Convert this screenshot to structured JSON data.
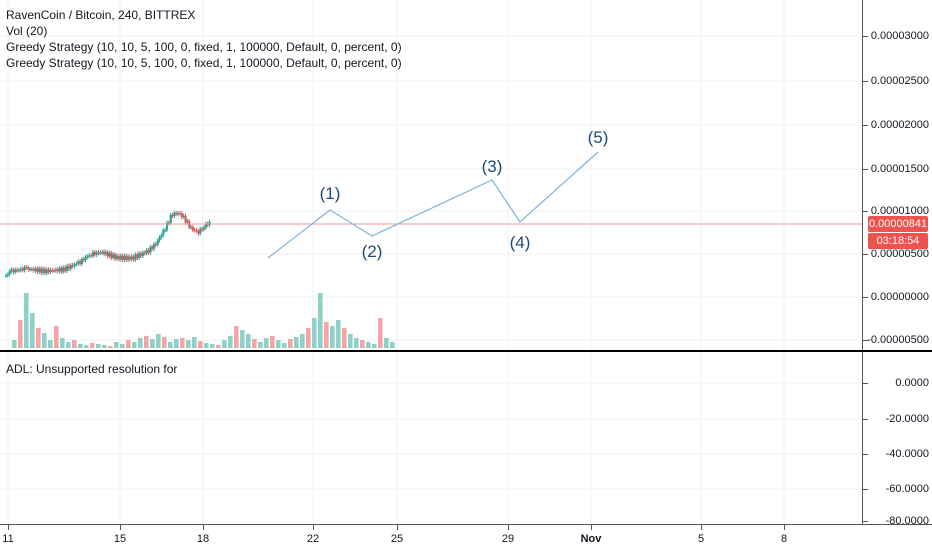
{
  "legend": {
    "symbol": "RavenCoin / Bitcoin, 240, BITTREX",
    "volume": "Vol (20)",
    "strategy_1": "Greedy Strategy (10, 10, 5, 100, 0, fixed, 1, 100000, Default, 0, percent, 0)",
    "strategy_2": "Greedy Strategy (10, 10, 5, 100, 0, fixed, 1, 100000, Default, 0, percent, 0)"
  },
  "sub_pane": {
    "label": "ADL: Unsupported resolution for"
  },
  "price_axis": [
    "0.00003000",
    "0.00002500",
    "0.00002000",
    "0.00001500",
    "0.00001000",
    "0.00000500",
    "0.00000000",
    "-0.00000500"
  ],
  "adl_axis": [
    "0.0000",
    "-20.0000",
    "-40.0000",
    "-60.0000",
    "-80.0000"
  ],
  "time_axis": [
    "11",
    "15",
    "18",
    "22",
    "25",
    "29",
    "Nov",
    "5",
    "8"
  ],
  "current_price": {
    "value": "0.00000841",
    "countdown": "03:18:54"
  },
  "wave_labels": [
    "(1)",
    "(2)",
    "(3)",
    "(4)",
    "(5)"
  ],
  "colors": {
    "up": "#26a69a",
    "down": "#ef5350",
    "wave": "#7db5da",
    "price_line": "#ef9a9a"
  },
  "chart_data": {
    "type": "candlestick",
    "y_range": [
      -6.5e-06,
      3.45e-05
    ],
    "last_price": 8.41e-06,
    "wave_points": [
      {
        "label": "(1)",
        "x": "Oct 22",
        "y": 9.9e-06
      },
      {
        "label": "(2)",
        "x": "Oct 24",
        "y": 7.5e-06
      },
      {
        "label": "(3)",
        "x": "Oct 28",
        "y": 1.31e-05
      },
      {
        "label": "(4)",
        "x": "Oct 29",
        "y": 8.5e-06
      },
      {
        "label": "(5)",
        "x": "Nov 2",
        "y": 1.66e-05
      }
    ]
  }
}
